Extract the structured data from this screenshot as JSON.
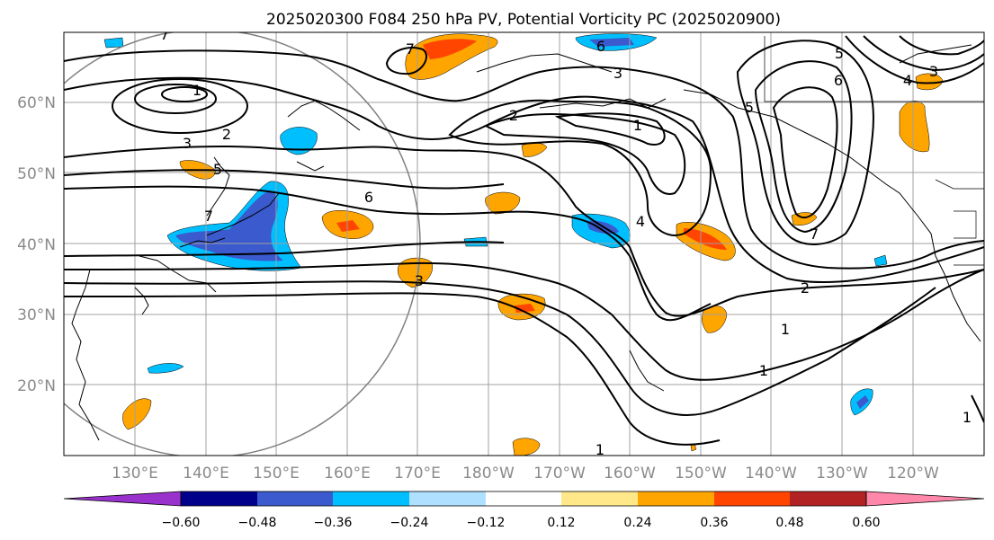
{
  "title": "2025020300 F084 250 hPa PV, Potential Vorticity PC (2025020900)",
  "map": {
    "lat_labels": [
      "60°N",
      "50°N",
      "40°N",
      "30°N",
      "20°N"
    ],
    "lon_labels": [
      "130°E",
      "140°E",
      "150°E",
      "160°E",
      "170°E",
      "180°W",
      "170°W",
      "160°W",
      "150°W",
      "140°W",
      "130°W",
      "120°W"
    ],
    "contour_labels": [
      "1",
      "2",
      "3",
      "4",
      "5",
      "6",
      "7"
    ]
  },
  "colorbar": {
    "ticks": [
      "−0.60",
      "−0.48",
      "−0.36",
      "−0.24",
      "−0.12",
      "0.12",
      "0.24",
      "0.36",
      "0.48",
      "0.60"
    ],
    "colors": [
      "#9932cc",
      "#00008b",
      "#3a5acd",
      "#00bfff",
      "#b0e0ff",
      "#ffffff",
      "#ffe88a",
      "#ffa500",
      "#ff4500",
      "#b22222",
      "#ff88aa"
    ]
  },
  "colors": {
    "negative_strong": "#3a5acd",
    "negative": "#00bfff",
    "positive": "#ffa500",
    "positive_strong": "#ff4500"
  }
}
